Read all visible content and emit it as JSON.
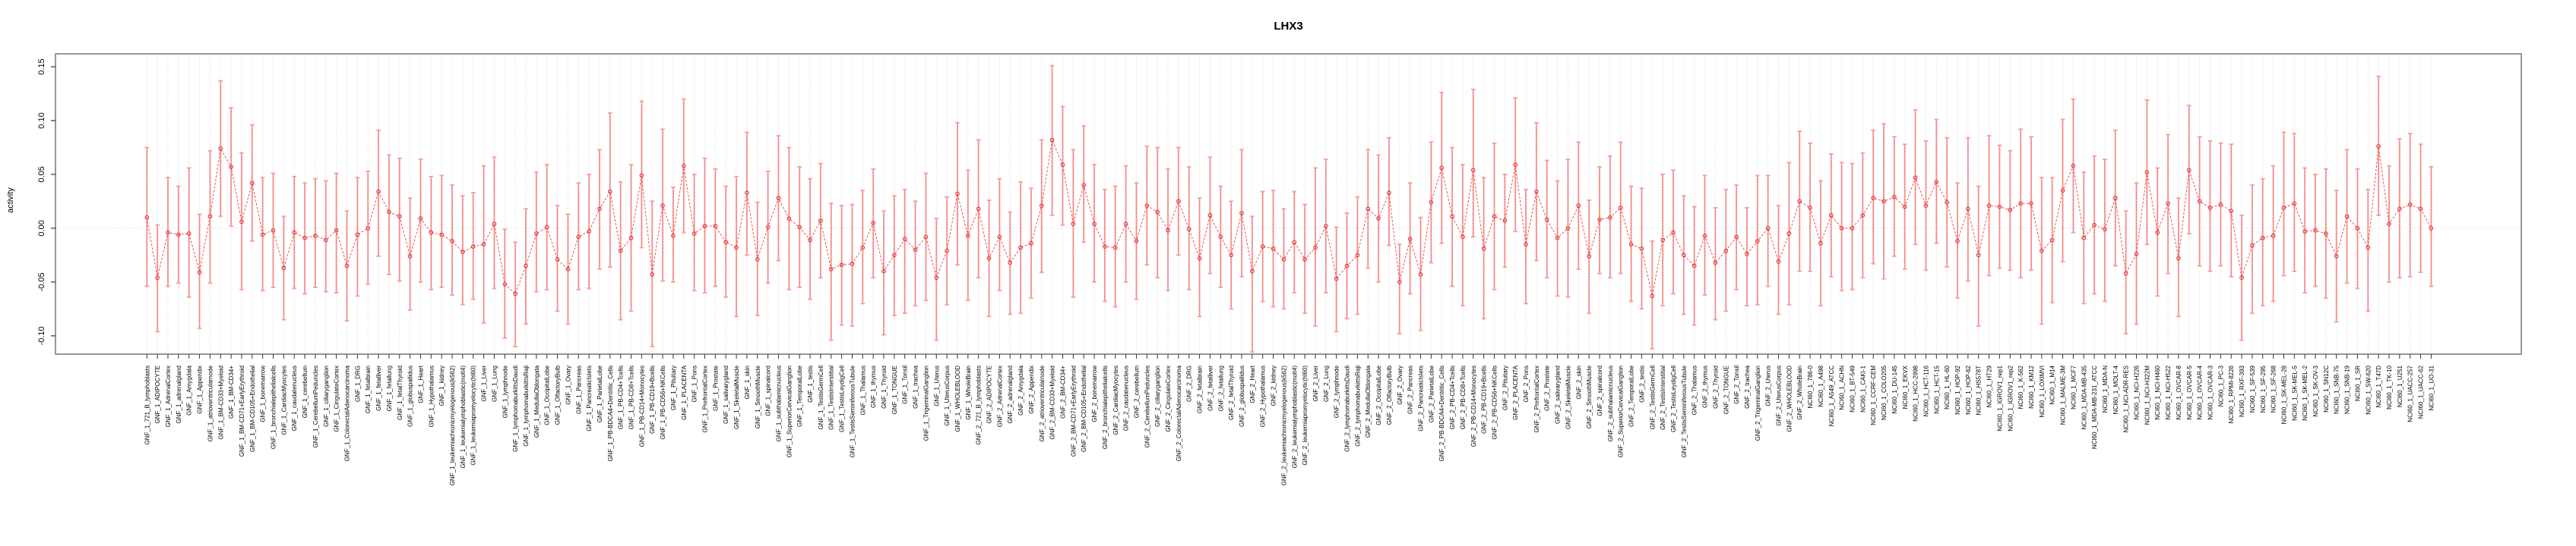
{
  "title": "LHX3",
  "chart_data": {
    "type": "scatter",
    "subtype": "points-with-error-bars-connected-by-dashed-line",
    "title": "LHX3",
    "xlabel": "",
    "ylabel": "activity",
    "ylim": [
      -0.117,
      0.162
    ],
    "yticks": [
      0.15,
      0.1,
      0.05,
      0.0,
      -0.05,
      -0.1
    ],
    "ytick_labels": [
      "0.15",
      "0.10",
      "0.05",
      "0.00",
      "-0.05",
      "-0.10"
    ],
    "grid": "vertical dotted gridline per category; horizontal dotted line at 0.00",
    "legend_position": "none",
    "point_color": "#e53935",
    "line_color": "#ef5350",
    "errorbar_color": "#f5a3a3",
    "frame_color": "#7f7f7f",
    "categories": [
      "GNF_1_721_B_lymphoblasts",
      "GNF_1_ADIPOCYTE",
      "GNF_1_AdrenalCortex",
      "GNF_1_adrenalgland",
      "GNF_1_Amygdala",
      "GNF_1_Appendix",
      "GNF_1_atrioventricularnode",
      "GNF_1_BM-CD33+Myeloid",
      "GNF_1_BM-CD34+",
      "GNF_1_BM-CD71+EarlyErythroid",
      "GNF_1_BM-CD105+Endothelial",
      "GNF_1_bonemarrow",
      "GNF_1_bronchialepithelialcells",
      "GNF_1_CardiacMyocytes",
      "GNF_1_caudatenucleus",
      "GNF_1_cerebellum",
      "GNF_1_CerebellumPeduncles",
      "GNF_1_ciliaryganglion",
      "GNF_1_CingulateCortex",
      "GNF_1_ColorectalAdenocarcinoma",
      "GNF_1_DRG",
      "GNF_1_fetalbrain",
      "GNF_1_fetalliver",
      "GNF_1_fetallung",
      "GNF_1_fetalThyroid",
      "GNF_1_globuspallidus",
      "GNF_1_Heart",
      "GNF_1_Hypothalamus",
      "GNF_1_kidney",
      "GNF_1_leukemiachronicmyelogenous(k562)",
      "GNF_1_leukemialymphoblastic(molt4)",
      "GNF_1_leukemiapromyelocytic(hl60)",
      "GNF_1_Liver",
      "GNF_1_Lung",
      "GNF_1_lymphnode",
      "GNF_1_lymphomaburkittsDaudi",
      "GNF_1_lymphomaburkittsRaji",
      "GNF_1_MedullaOblongata",
      "GNF_1_OccipitalLobe",
      "GNF_1_OlfactoryBulb",
      "GNF_1_Ovary",
      "GNF_1_Pancreas",
      "GNF_1_PancreaticIslets",
      "GNF_1_ParietalLobe",
      "GNF_1_PB-BDCA4+Dentritic_Cells",
      "GNF_1_PB-CD4+Tcells",
      "GNF_1_PB-CD8+Tcells",
      "GNF_1_PB-CD14+Monocytes",
      "GNF_1_PB-CD19+Bcells",
      "GNF_1_PB-CD56+NKCells",
      "GNF_1_Pituitary",
      "GNF_1_PLACENTA",
      "GNF_1_Pons",
      "GNF_1_PrefrontalCortex",
      "GNF_1_Prostate",
      "GNF_1_salivarygland",
      "GNF_1_SkeletalMuscle",
      "GNF_1_skin",
      "GNF_1_SmoothMuscle",
      "GNF_1_spinalcord",
      "GNF_1_subthalamicnucleus",
      "GNF_1_SuperiorCervicalGanglion",
      "GNF_1_TemporalLobe",
      "GNF_1_testis",
      "GNF_1_TestisGermCell",
      "GNF_1_TestisInterstitial",
      "GNF_1_TestisLeydigCell",
      "GNF_1_TestisSeminiferousTubule",
      "GNF_1_Thalamus",
      "GNF_1_thymus",
      "GNF_1_Thyroid",
      "GNF_1_TONGUE",
      "GNF_1_Tonsil",
      "GNF_1_trachea",
      "GNF_1_TrigeminalGanglion",
      "GNF_1_Uterus",
      "GNF_1_UterusCorpus",
      "GNF_1_WHOLEBLOOD",
      "GNF_1_WholeBrain",
      "GNF_2_721_B_lymphoblasts",
      "GNF_2_ADIPOCYTE",
      "GNF_2_AdrenalCortex",
      "GNF_2_adrenalgland",
      "GNF_2_Amygdala",
      "GNF_2_Appendix",
      "GNF_2_atrioventricularnode",
      "GNF_2_BM-CD33+Myeloid",
      "GNF_2_BM-CD34+",
      "GNF_2_BM-CD71+EarlyErythroid",
      "GNF_2_BM-CD105+Endothelial",
      "GNF_2_bonemarrow",
      "GNF_2_bronchialepithelialcells",
      "GNF_2_CardiacMyocytes",
      "GNF_2_caudatenucleus",
      "GNF_2_cerebellum",
      "GNF_2_CerebellumPeduncles",
      "GNF_2_ciliaryganglion",
      "GNF_2_CingulateCortex",
      "GNF_2_ColorectalAdenocarcinoma",
      "GNF_2_DRG",
      "GNF_2_fetalbrain",
      "GNF_2_fetalliver",
      "GNF_2_fetallung",
      "GNF_2_fetalThyroid",
      "GNF_2_globuspallidus",
      "GNF_2_Heart",
      "GNF_2_Hypothalamus",
      "GNF_2_kidney",
      "GNF_2_leukemiachronicmyelogenous(k562)",
      "GNF_2_leukemialymphoblastic(molt4)",
      "GNF_2_leukemiapromyelocytic(hl60)",
      "GNF_2_Liver",
      "GNF_2_Lung",
      "GNF_2_lymphnode",
      "GNF_2_lymphomaburkittsDaudi",
      "GNF_2_lymphomaburkittsRaji",
      "GNF_2_MedullaOblongata",
      "GNF_2_OccipitalLobe",
      "GNF_2_OlfactoryBulb",
      "GNF_2_Ovary",
      "GNF_2_Pancreas",
      "GNF_2_PancreaticIslets",
      "GNF_2_ParietalLobe",
      "GNF_2_PB-BDCA4+Dentritic_Cells",
      "GNF_2_PB-CD4+Tcells",
      "GNF_2_PB-CD8+Tcells",
      "GNF_2_PB-CD14+Monocytes",
      "GNF_2_PB-CD19+Bcells",
      "GNF_2_PB-CD56+NKCells",
      "GNF_2_Pituitary",
      "GNF_2_PLACENTA",
      "GNF_2_Pons",
      "GNF_2_PrefrontalCortex",
      "GNF_2_Prostate",
      "GNF_2_salivarygland",
      "GNF_2_SkeletalMuscle",
      "GNF_2_skin",
      "GNF_2_SmoothMuscle",
      "GNF_2_spinalcord",
      "GNF_2_subthalamicnucleus",
      "GNF_2_SuperiorCervicalGanglion",
      "GNF_2_TemporalLobe",
      "GNF_2_testis",
      "GNF_2_TestisGermCell",
      "GNF_2_TestisInterstitial",
      "GNF_2_TestisLeydigCell",
      "GNF_2_TestisSeminiferousTubule",
      "GNF_2_Thalamus",
      "GNF_2_thymus",
      "GNF_2_Thyroid",
      "GNF_2_TONGUE",
      "GNF_2_Tonsil",
      "GNF_2_trachea",
      "GNF_2_TrigeminalGanglion",
      "GNF_2_Uterus",
      "GNF_2_UterusCorpus",
      "GNF_2_WHOLEBLOOD",
      "GNF_2_WholeBrain",
      "NCI60_1_786-0",
      "NCI60_1_A498",
      "NCI60_1_A549_ATCC",
      "NCI60_1_ACHN",
      "NCI60_1_BT-549",
      "NCI60_1_CAKI-1",
      "NCI60_1_CCRF-CEM",
      "NCI60_1_COLO205",
      "NCI60_1_DU-145",
      "NCI60_1_EKVX",
      "NCI60_1_HCC-2998",
      "NCI60_1_HCT-116",
      "NCI60_1_HCT-15",
      "NCI60_1_HL-60",
      "NCI60_1_HOP-92",
      "NCI60_1_HOP-62",
      "NCI60_1_HS578T",
      "NCI60_1_HT29",
      "NCI60_1_IGROV1_rep1",
      "NCI60_1_IGROV1_rep2",
      "NCI60_1_K-562",
      "NCI60_1_KM12",
      "NCI60_1_LOXIMVI",
      "NCI60_1_M14",
      "NCI60_1_MALME-3M",
      "NCI60_1_MCF7",
      "NCI60_1_MDA-MB-435",
      "NCI60_1_MDA-MB-231_ATCC",
      "NCI60_1_MDA-N",
      "NCI60_1_MOLT-4",
      "NCI60_1_NCI-ADR-RES",
      "NCI60_1_NCI-H226",
      "NCI60_1_NCI-H322M",
      "NCI60_1_NCI-H460",
      "NCI60_1_NCI-H522",
      "NCI60_1_OVCAR-8",
      "NCI60_1_OVCAR-5",
      "NCI60_1_OVCAR-4",
      "NCI60_1_OVCAR-3",
      "NCI60_1_PC-3",
      "NCI60_1_RPMI-8226",
      "NCI60_1_RXF-393",
      "NCI60_1_SF-539",
      "NCI60_1_SF-295",
      "NCI60_1_SF-268",
      "NCI60_1_SK-MEL-28",
      "NCI60_1_SK-MEL-5",
      "NCI60_1_SK-MEL-2",
      "NCI60_1_SK-OV-3",
      "NCI60_1_SN12C",
      "NCI60_1_SNB-75",
      "NCI60_1_SNB-19",
      "NCI60_1_SR",
      "NCI60_1_SW-620",
      "NCI60_1_T47D",
      "NCI60_1_TK-10",
      "NCI60_1_U251",
      "NCI60_1_UACC-257",
      "NCI60_1_UACC-62",
      "NCI60_1_UO-31"
    ],
    "values": [
      0.01,
      -0.046,
      -0.004,
      -0.006,
      -0.005,
      -0.041,
      0.011,
      0.074,
      0.057,
      0.006,
      0.042,
      -0.006,
      -0.002,
      -0.037,
      -0.004,
      -0.009,
      -0.007,
      -0.011,
      -0.002,
      -0.035,
      -0.006,
      0.0,
      0.034,
      0.015,
      0.011,
      -0.026,
      0.009,
      -0.004,
      -0.006,
      -0.012,
      -0.022,
      -0.017,
      -0.015,
      0.004,
      -0.052,
      -0.061,
      -0.035,
      -0.005,
      0.001,
      -0.029,
      -0.038,
      -0.008,
      -0.003,
      0.018,
      0.034,
      -0.021,
      -0.009,
      0.049,
      -0.043,
      0.021,
      -0.007,
      0.058,
      -0.005,
      0.002,
      0.002,
      -0.013,
      -0.018,
      0.033,
      -0.029,
      0.001,
      0.028,
      0.009,
      0.001,
      -0.011,
      0.007,
      -0.038,
      -0.034,
      -0.033,
      -0.018,
      0.005,
      -0.04,
      -0.025,
      -0.01,
      -0.02,
      -0.008,
      -0.046,
      -0.021,
      0.032,
      -0.007,
      0.018,
      -0.028,
      -0.008,
      -0.032,
      -0.018,
      -0.014,
      0.021,
      0.082,
      0.059,
      0.004,
      0.04,
      0.004,
      -0.017,
      -0.018,
      0.004,
      -0.012,
      0.021,
      0.015,
      -0.002,
      0.025,
      -0.001,
      -0.028,
      0.012,
      -0.008,
      -0.025,
      0.014,
      -0.04,
      -0.017,
      -0.019,
      -0.029,
      -0.013,
      -0.029,
      -0.018,
      0.002,
      -0.047,
      -0.035,
      -0.025,
      0.018,
      0.009,
      0.033,
      -0.05,
      -0.01,
      -0.043,
      0.024,
      0.056,
      0.011,
      -0.008,
      0.054,
      -0.019,
      0.011,
      0.007,
      0.059,
      -0.015,
      0.034,
      0.008,
      -0.009,
      0.0,
      0.021,
      -0.026,
      0.008,
      0.01,
      0.019,
      -0.015,
      -0.019,
      -0.063,
      -0.011,
      -0.004,
      -0.025,
      -0.035,
      -0.007,
      -0.032,
      -0.021,
      -0.008,
      -0.024,
      -0.012,
      0.0,
      -0.031,
      -0.005,
      0.025,
      0.019,
      -0.014,
      0.012,
      0.0,
      0.0,
      0.012,
      0.028,
      0.025,
      0.029,
      0.02,
      0.047,
      0.021,
      0.043,
      0.024,
      -0.012,
      0.018,
      -0.025,
      0.021,
      0.02,
      0.017,
      0.023,
      0.023,
      -0.021,
      -0.011,
      0.035,
      0.058,
      -0.009,
      0.003,
      -0.001,
      0.028,
      -0.042,
      -0.024,
      0.052,
      -0.004,
      0.023,
      -0.028,
      0.054,
      0.025,
      0.019,
      0.022,
      0.016,
      -0.046,
      -0.016,
      -0.009,
      -0.007,
      0.019,
      0.023,
      -0.003,
      -0.002,
      -0.005,
      -0.026,
      0.011,
      0.0,
      -0.018,
      0.076,
      0.004,
      0.018,
      0.022,
      0.018,
      0.0
    ],
    "ci_low": [
      -0.054,
      -0.096,
      -0.054,
      -0.051,
      -0.064,
      -0.093,
      -0.051,
      0.011,
      0.002,
      -0.057,
      -0.012,
      -0.058,
      -0.055,
      -0.085,
      -0.056,
      -0.061,
      -0.055,
      -0.059,
      -0.06,
      -0.086,
      -0.063,
      -0.052,
      -0.026,
      -0.043,
      -0.049,
      -0.076,
      -0.05,
      -0.057,
      -0.055,
      -0.062,
      -0.071,
      -0.066,
      -0.088,
      -0.056,
      -0.102,
      -0.11,
      -0.089,
      -0.059,
      -0.057,
      -0.077,
      -0.089,
      -0.057,
      -0.056,
      -0.038,
      -0.036,
      -0.085,
      -0.077,
      -0.018,
      -0.11,
      -0.049,
      -0.05,
      -0.004,
      -0.058,
      -0.06,
      -0.054,
      -0.064,
      -0.082,
      -0.025,
      -0.081,
      -0.051,
      -0.03,
      -0.057,
      -0.055,
      -0.066,
      -0.046,
      -0.104,
      -0.09,
      -0.091,
      -0.07,
      -0.046,
      -0.099,
      -0.081,
      -0.079,
      -0.072,
      -0.067,
      -0.104,
      -0.071,
      -0.034,
      -0.067,
      -0.046,
      -0.082,
      -0.058,
      -0.08,
      -0.079,
      -0.065,
      -0.041,
      0.012,
      0.003,
      -0.064,
      -0.013,
      -0.05,
      -0.068,
      -0.073,
      -0.05,
      -0.066,
      -0.034,
      -0.046,
      -0.058,
      -0.025,
      -0.057,
      -0.082,
      -0.042,
      -0.055,
      -0.075,
      -0.045,
      -0.115,
      -0.068,
      -0.073,
      -0.075,
      -0.06,
      -0.079,
      -0.091,
      -0.06,
      -0.096,
      -0.084,
      -0.08,
      -0.037,
      -0.05,
      -0.016,
      -0.098,
      -0.061,
      -0.095,
      -0.032,
      -0.014,
      -0.054,
      -0.072,
      -0.008,
      -0.084,
      -0.057,
      -0.036,
      -0.003,
      -0.07,
      -0.03,
      -0.046,
      -0.063,
      -0.064,
      -0.038,
      -0.079,
      -0.042,
      -0.046,
      -0.042,
      -0.068,
      -0.075,
      -0.112,
      -0.072,
      -0.061,
      -0.08,
      -0.09,
      -0.062,
      -0.085,
      -0.077,
      -0.057,
      -0.072,
      -0.071,
      -0.054,
      -0.08,
      -0.071,
      -0.04,
      -0.04,
      -0.072,
      -0.045,
      -0.058,
      -0.057,
      -0.046,
      -0.033,
      -0.047,
      -0.026,
      -0.038,
      -0.015,
      -0.039,
      -0.014,
      -0.036,
      -0.065,
      -0.049,
      -0.091,
      -0.044,
      -0.037,
      -0.039,
      -0.046,
      -0.039,
      -0.089,
      -0.069,
      -0.031,
      -0.004,
      -0.07,
      -0.061,
      -0.068,
      -0.035,
      -0.098,
      -0.089,
      -0.015,
      -0.063,
      -0.042,
      -0.082,
      -0.005,
      -0.035,
      -0.04,
      -0.035,
      -0.045,
      -0.104,
      -0.079,
      -0.072,
      -0.068,
      -0.044,
      -0.04,
      -0.06,
      -0.054,
      -0.065,
      -0.087,
      -0.051,
      -0.056,
      -0.077,
      0.012,
      -0.05,
      -0.046,
      -0.045,
      -0.041,
      -0.054
    ],
    "ci_high": [
      0.075,
      0.003,
      0.047,
      0.039,
      0.056,
      0.013,
      0.072,
      0.137,
      0.112,
      0.07,
      0.096,
      0.047,
      0.051,
      0.011,
      0.048,
      0.042,
      0.046,
      0.044,
      0.051,
      0.016,
      0.047,
      0.053,
      0.091,
      0.068,
      0.065,
      0.028,
      0.064,
      0.048,
      0.049,
      0.04,
      0.03,
      0.033,
      0.058,
      0.066,
      -0.001,
      -0.013,
      0.018,
      0.052,
      0.059,
      0.021,
      0.013,
      0.042,
      0.05,
      0.073,
      0.107,
      0.043,
      0.059,
      0.118,
      0.025,
      0.092,
      0.038,
      0.12,
      0.05,
      0.065,
      0.055,
      0.039,
      0.048,
      0.089,
      0.024,
      0.053,
      0.086,
      0.075,
      0.057,
      0.046,
      0.06,
      0.023,
      0.021,
      0.022,
      0.035,
      0.055,
      0.016,
      0.03,
      0.036,
      0.025,
      0.051,
      0.009,
      0.029,
      0.098,
      0.054,
      0.082,
      0.026,
      0.046,
      0.015,
      0.043,
      0.037,
      0.082,
      0.151,
      0.113,
      0.073,
      0.095,
      0.059,
      0.036,
      0.039,
      0.058,
      0.042,
      0.076,
      0.075,
      0.055,
      0.075,
      0.057,
      0.028,
      0.066,
      0.039,
      0.025,
      0.073,
      0.011,
      0.034,
      0.035,
      0.018,
      0.034,
      0.022,
      0.056,
      0.064,
      0.001,
      0.014,
      0.029,
      0.073,
      0.068,
      0.084,
      -0.015,
      0.042,
      0.01,
      0.08,
      0.126,
      0.075,
      0.059,
      0.129,
      0.047,
      0.079,
      0.05,
      0.121,
      0.036,
      0.098,
      0.063,
      0.044,
      0.064,
      0.08,
      0.026,
      0.057,
      0.067,
      0.08,
      0.039,
      0.037,
      -0.012,
      0.05,
      0.054,
      0.03,
      0.02,
      0.049,
      0.019,
      0.036,
      0.04,
      0.019,
      0.049,
      0.049,
      0.021,
      0.061,
      0.09,
      0.079,
      0.044,
      0.069,
      0.061,
      0.06,
      0.07,
      0.091,
      0.097,
      0.085,
      0.078,
      0.11,
      0.081,
      0.101,
      0.084,
      0.042,
      0.084,
      0.039,
      0.086,
      0.077,
      0.072,
      0.092,
      0.085,
      0.047,
      0.047,
      0.101,
      0.12,
      0.052,
      0.067,
      0.064,
      0.091,
      0.016,
      0.042,
      0.119,
      0.056,
      0.087,
      0.028,
      0.114,
      0.085,
      0.081,
      0.079,
      0.078,
      0.012,
      0.04,
      0.046,
      0.058,
      0.089,
      0.088,
      0.056,
      0.05,
      0.055,
      0.035,
      0.073,
      0.055,
      0.036,
      0.141,
      0.058,
      0.083,
      0.088,
      0.078,
      0.057
    ]
  }
}
